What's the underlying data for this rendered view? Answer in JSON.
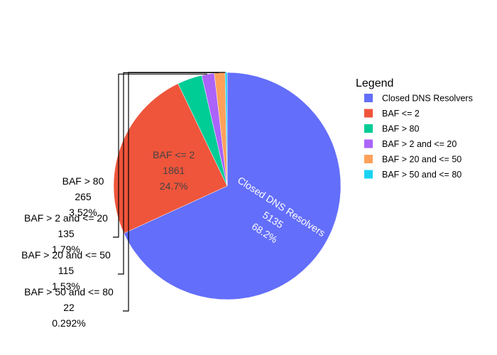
{
  "chart_data": {
    "type": "pie",
    "title": "",
    "legend_title": "Legend",
    "legend_position": "right",
    "slices": [
      {
        "label": "Closed DNS Resolvers",
        "value": 5135,
        "percent": "68.2%",
        "color": "#636efa"
      },
      {
        "label": "BAF <= 2",
        "value": 1861,
        "percent": "24.7%",
        "color": "#ef553b"
      },
      {
        "label": "BAF > 80",
        "value": 265,
        "percent": "3.52%",
        "color": "#00cc96"
      },
      {
        "label": "BAF > 2 and <= 20",
        "value": 135,
        "percent": "1.79%",
        "color": "#ab63fa"
      },
      {
        "label": "BAF > 20 and <= 50",
        "value": 115,
        "percent": "1.53%",
        "color": "#ffa15a"
      },
      {
        "label": "BAF > 50 and <= 80",
        "value": 22,
        "percent": "0.292%",
        "color": "#19d3f3"
      }
    ]
  }
}
